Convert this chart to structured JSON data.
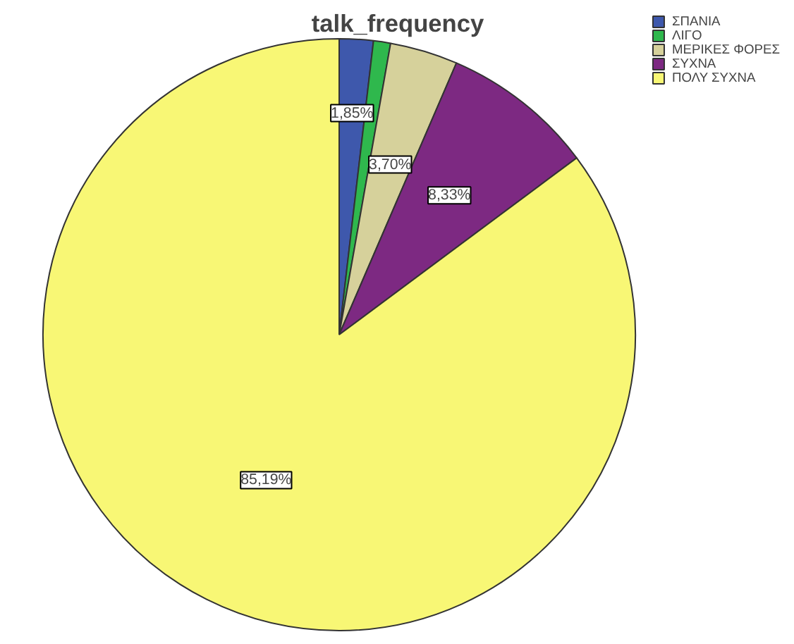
{
  "chart_data": {
    "type": "pie",
    "title": "talk_frequency",
    "categories": [
      "ΣΠΑΝΙΑ",
      "ΛΙΓΟ",
      "ΜΕΡΙΚΕΣ ΦΟΡΕΣ",
      "ΣΥΧΝΑ",
      "ΠΟΛΥ ΣΥΧΝΑ"
    ],
    "values": [
      1.85,
      0.93,
      3.7,
      8.33,
      85.19
    ],
    "colors": [
      "#3e58ac",
      "#2fb84d",
      "#d6d19b",
      "#7d2982",
      "#f8f775"
    ],
    "value_labels": [
      "1,85%",
      null,
      "3,70%",
      "8,33%",
      "85,19%"
    ],
    "legend": "top right"
  }
}
